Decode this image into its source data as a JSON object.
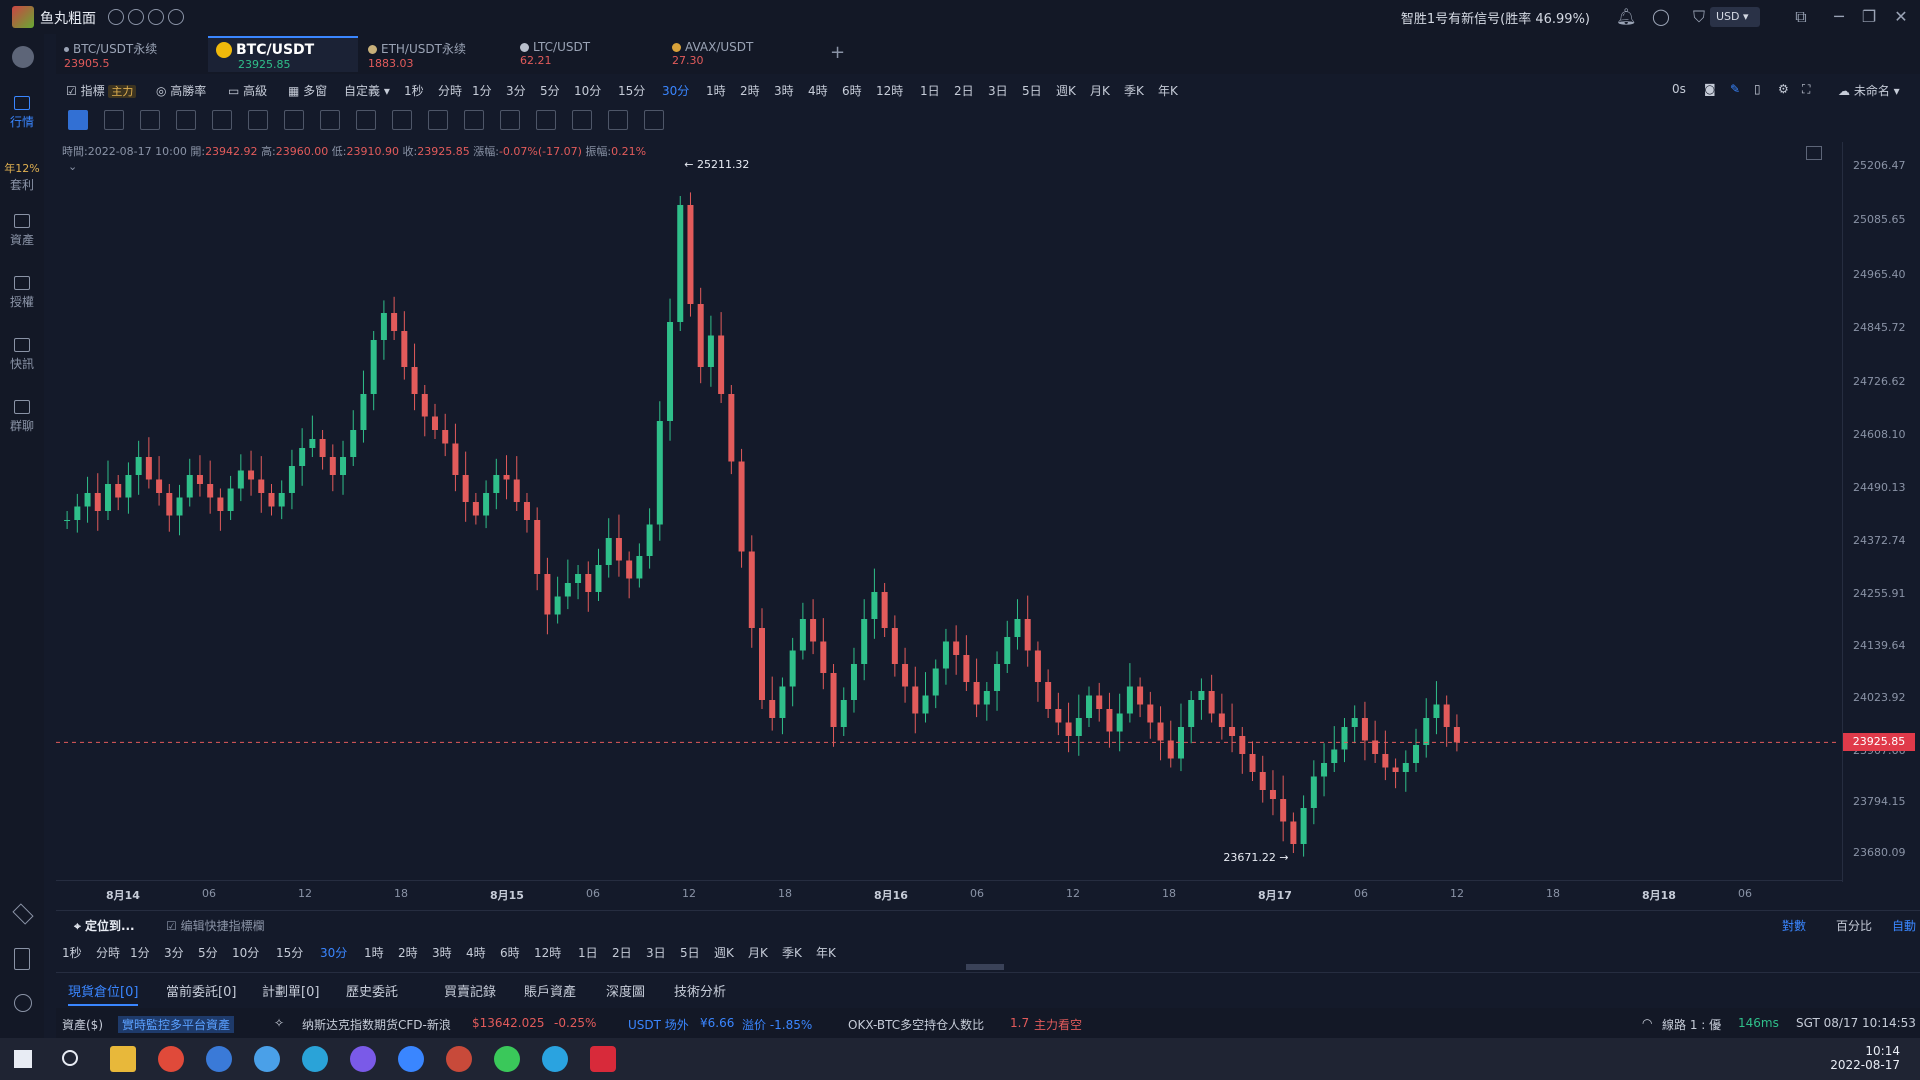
{
  "titlebar": {
    "app_name": "鱼丸粗面",
    "signal_text": "智胜1号有新信号(胜率 46.99%)",
    "currency": "USD"
  },
  "tabs": [
    {
      "symbol": "BTC/USDT永续",
      "price": "23905.5",
      "coin_color": "#9aa3b5"
    },
    {
      "symbol": "BTC/USDT",
      "price": "23925.85",
      "coin_color": "#f0b90b"
    },
    {
      "symbol": "ETH/USDT永续",
      "price": "1883.03",
      "coin_color": "#c8b07a"
    },
    {
      "symbol": "LTC/USDT",
      "price": "62.21",
      "coin_color": "#b8bfcc"
    },
    {
      "symbol": "AVAX/USDT",
      "price": "27.30",
      "coin_color": "#d8a23a"
    }
  ],
  "add_tab": "+",
  "sidebar": {
    "items": [
      {
        "label": "行情"
      },
      {
        "label": "套利",
        "badge": "年12%"
      },
      {
        "label": "資產"
      },
      {
        "label": "授權"
      },
      {
        "label": "快訊"
      },
      {
        "label": "群聊"
      }
    ]
  },
  "toolbar": {
    "indicator": "指標",
    "main_tag": "主力",
    "win_rate": "高勝率",
    "advanced": "高級",
    "multi_window": "多窗",
    "custom": "自定義",
    "intervals": [
      "1秒",
      "分時",
      "1分",
      "3分",
      "5分",
      "10分",
      "15分",
      "30分",
      "1時",
      "2時",
      "3時",
      "4時",
      "6時",
      "12時",
      "1日",
      "2日",
      "3日",
      "5日",
      "週K",
      "月K",
      "季K",
      "年K"
    ],
    "active_interval": "30分",
    "countdown": "0s",
    "layout_name": "未命名"
  },
  "ohlc": {
    "time_label": "時間:",
    "time": "2022-08-17 10:00",
    "open_label": "開:",
    "open": "23942.92",
    "high_label": "高:",
    "high": "23960.00",
    "low_label": "低:",
    "low": "23910.90",
    "close_label": "收:",
    "close": "23925.85",
    "change_label": "漲幅:",
    "change": "-0.07%(-17.07)",
    "amp_label": "振幅:",
    "amplitude": "0.21%"
  },
  "chart_data": {
    "type": "candlestick",
    "symbol": "BTC/USDT",
    "interval": "30分",
    "ylim": [
      23620,
      25260
    ],
    "y_ticks": [
      "25206.47",
      "25085.65",
      "24965.40",
      "24845.72",
      "24726.62",
      "24608.10",
      "24490.13",
      "24372.74",
      "24255.91",
      "24139.64",
      "24023.92",
      "23907.66",
      "23794.15",
      "23680.09"
    ],
    "x_ticks": [
      "8月14",
      "06",
      "12",
      "18",
      "8月15",
      "06",
      "12",
      "18",
      "8月16",
      "06",
      "12",
      "18",
      "8月17",
      "06",
      "12",
      "18",
      "8月18",
      "06"
    ],
    "high_marker": "25211.32",
    "low_marker": "23671.22",
    "last_price": "23925.85",
    "close_series": [
      24420,
      24450,
      24480,
      24440,
      24500,
      24470,
      24520,
      24560,
      24510,
      24480,
      24430,
      24470,
      24520,
      24500,
      24470,
      24440,
      24490,
      24530,
      24510,
      24480,
      24450,
      24480,
      24540,
      24580,
      24600,
      24560,
      24520,
      24560,
      24620,
      24700,
      24820,
      24880,
      24840,
      24760,
      24700,
      24650,
      24620,
      24590,
      24520,
      24460,
      24430,
      24480,
      24520,
      24510,
      24460,
      24420,
      24300,
      24210,
      24250,
      24280,
      24300,
      24260,
      24320,
      24380,
      24330,
      24290,
      24340,
      24410,
      24640,
      24860,
      25120,
      24900,
      24760,
      24830,
      24700,
      24550,
      24350,
      24180,
      24020,
      23980,
      24050,
      24130,
      24200,
      24150,
      24080,
      23960,
      24020,
      24100,
      24200,
      24260,
      24180,
      24100,
      24050,
      23990,
      24030,
      24090,
      24150,
      24120,
      24060,
      24010,
      24040,
      24100,
      24160,
      24200,
      24130,
      24060,
      24000,
      23970,
      23940,
      23980,
      24030,
      24000,
      23950,
      23990,
      24050,
      24010,
      23970,
      23930,
      23890,
      23960,
      24020,
      24040,
      23990,
      23960,
      23940,
      23900,
      23860,
      23820,
      23800,
      23750,
      23700,
      23780,
      23850,
      23880,
      23910,
      23960,
      23980,
      23930,
      23900,
      23870,
      23860,
      23880,
      23920,
      23980,
      24010,
      23960,
      23925.85
    ]
  },
  "lower_bar": {
    "locate": "定位到...",
    "edit_shortcut": "编辑快捷指標欄",
    "scale_log": "對數",
    "scale_percent": "百分比",
    "scale_auto": "自動"
  },
  "lower_intervals": [
    "1秒",
    "分時",
    "1分",
    "3分",
    "5分",
    "10分",
    "15分",
    "30分",
    "1時",
    "2時",
    "3時",
    "4時",
    "6時",
    "12時",
    "1日",
    "2日",
    "3日",
    "5日",
    "週K",
    "月K",
    "季K",
    "年K"
  ],
  "order_tabs": [
    "現貨倉位[0]",
    "當前委託[0]",
    "計劃單[0]",
    "歷史委託",
    "買賣記錄",
    "賬戶資產",
    "深度圖",
    "技術分析"
  ],
  "status": {
    "assets": "資產($)",
    "monitor": "實時監控多平台資產",
    "news": "纳斯达克指数期货CFD-新浪",
    "news_price": "$13642.025",
    "news_change": "-0.25%",
    "usdt_otc": "USDT 场外",
    "usdt_price": "¥6.66",
    "premium": "溢价 -1.85%",
    "okx_ratio_label": "OKX-BTC多空持仓人数比",
    "okx_ratio": "1.7",
    "okx_view": "主力看空",
    "line_label": "線路 1 : 優",
    "latency": "146ms",
    "timezone_time": "SGT 08/17 10:14:53"
  },
  "taskbar": {
    "time": "10:14",
    "date": "2022-08-17"
  }
}
